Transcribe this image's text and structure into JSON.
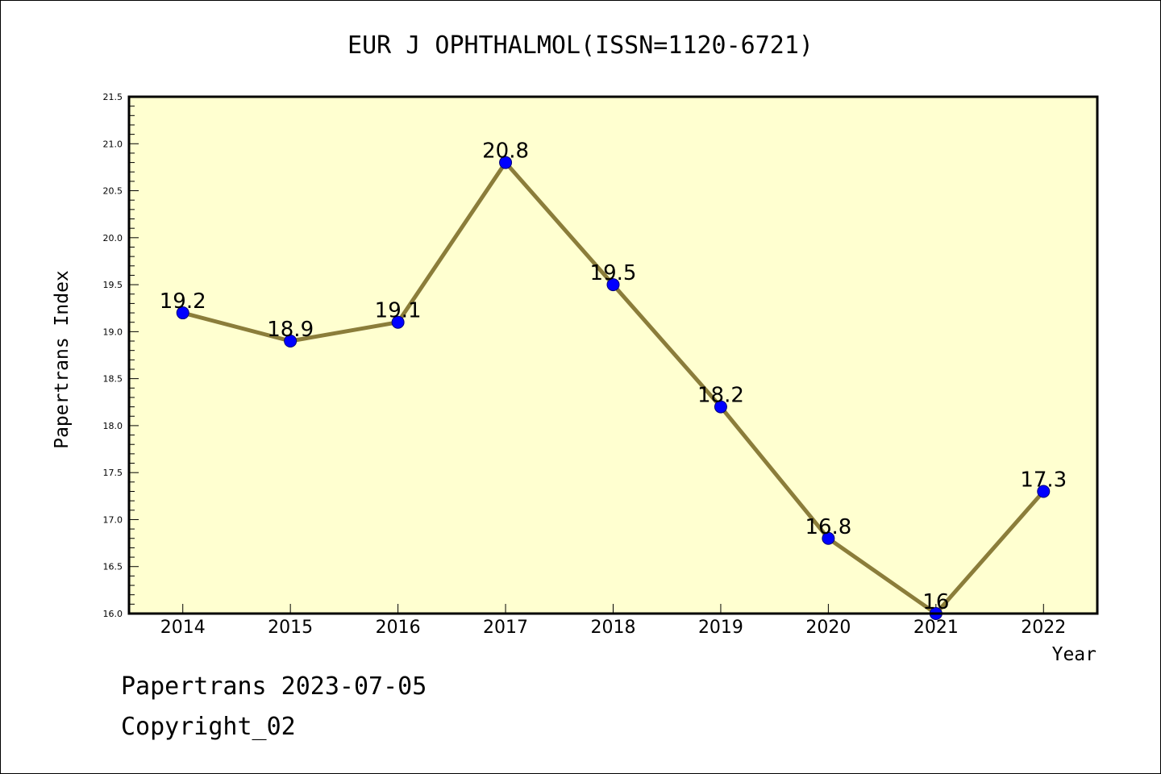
{
  "chart_data": {
    "type": "line",
    "title": "EUR J OPHTHALMOL(ISSN=1120-6721)",
    "xlabel": "Year",
    "ylabel": "Papertrans Index",
    "categories": [
      "2014",
      "2015",
      "2016",
      "2017",
      "2018",
      "2019",
      "2020",
      "2021",
      "2022"
    ],
    "values": [
      19.2,
      18.9,
      19.1,
      20.8,
      19.5,
      18.2,
      16.8,
      16,
      17.3
    ],
    "value_labels": [
      "19.2",
      "18.9",
      "19.1",
      "20.8",
      "19.5",
      "18.2",
      "16.8",
      "16",
      "17.3"
    ],
    "ylim": [
      16.0,
      21.5
    ],
    "yticks": [
      "16.0",
      "16.5",
      "17.0",
      "17.5",
      "18.0",
      "18.5",
      "19.0",
      "19.5",
      "20.0",
      "20.5",
      "21.0",
      "21.5"
    ],
    "grid": false,
    "colors": {
      "plot_background": "#ffffd0",
      "line": "#8b7d3a",
      "marker": "#0000ff"
    }
  },
  "footer": {
    "line1": "Papertrans 2023-07-05",
    "line2": "Copyright_02"
  }
}
